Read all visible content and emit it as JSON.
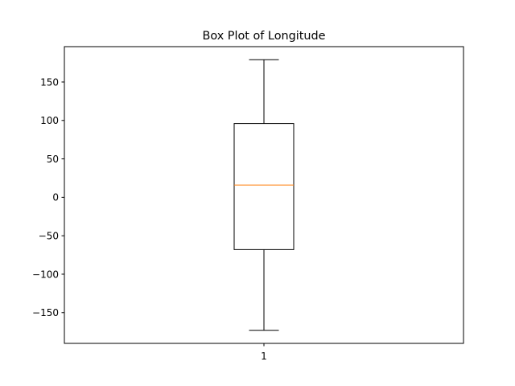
{
  "chart_data": {
    "type": "box",
    "title": "Box Plot of Longitude",
    "xlabel": "",
    "ylabel": "",
    "categories": [
      "1"
    ],
    "boxes": [
      {
        "category": "1",
        "whisker_low": -173,
        "q1": -68,
        "median": 16,
        "q3": 96,
        "whisker_high": 179
      }
    ],
    "ylim": [
      -190,
      196
    ],
    "y_ticks": [
      {
        "value": -150,
        "label": "−150"
      },
      {
        "value": -100,
        "label": "−100"
      },
      {
        "value": -50,
        "label": "−50"
      },
      {
        "value": 0,
        "label": "0"
      },
      {
        "value": 50,
        "label": "50"
      },
      {
        "value": 100,
        "label": "100"
      },
      {
        "value": 150,
        "label": "150"
      }
    ],
    "grid": false,
    "legend": "none",
    "colors": {
      "box": "#000000",
      "median": "#ff7f0e",
      "axes": "#000000",
      "background": "#ffffff"
    }
  }
}
